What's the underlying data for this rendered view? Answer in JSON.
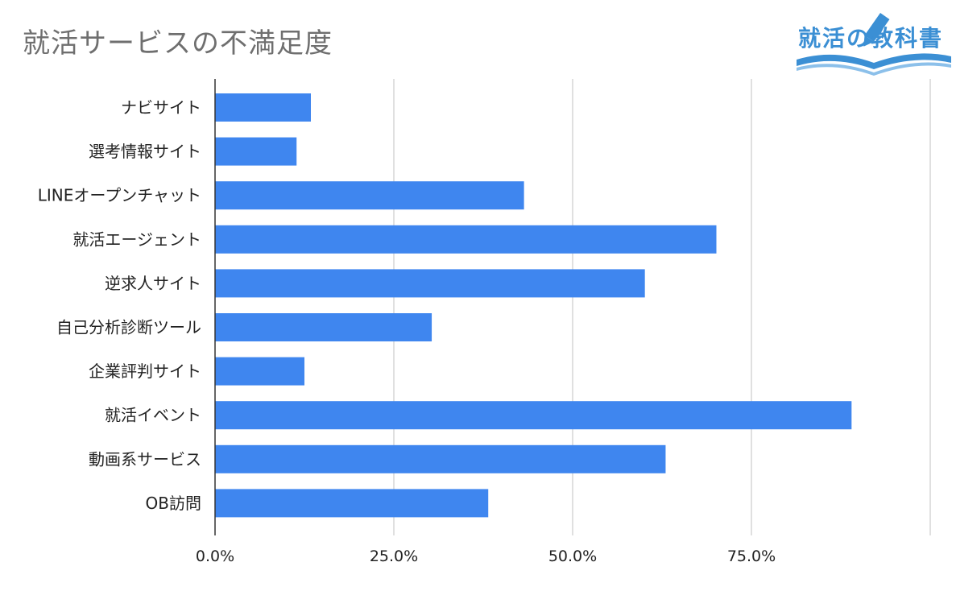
{
  "logo": {
    "text": "就活の教科書"
  },
  "chart_data": {
    "type": "bar",
    "orientation": "horizontal",
    "title": "就活サービスの不満足度",
    "categories": [
      "ナビサイト",
      "選考情報サイト",
      "LINEオープンチャット",
      "就活エージェント",
      "逆求人サイト",
      "自己分析診断ツール",
      "企業評判サイト",
      "就活イベント",
      "動画系サービス",
      "OB訪問"
    ],
    "values": [
      13.4,
      11.4,
      43.2,
      70.1,
      60.1,
      30.3,
      12.5,
      89.0,
      63.0,
      38.2
    ],
    "xlim": [
      0,
      100
    ],
    "x_ticks": [
      "0.0%",
      "25.0%",
      "50.0%",
      "75.0%"
    ],
    "grid": true,
    "bar_color": "#3f86ef",
    "legend": "none"
  }
}
